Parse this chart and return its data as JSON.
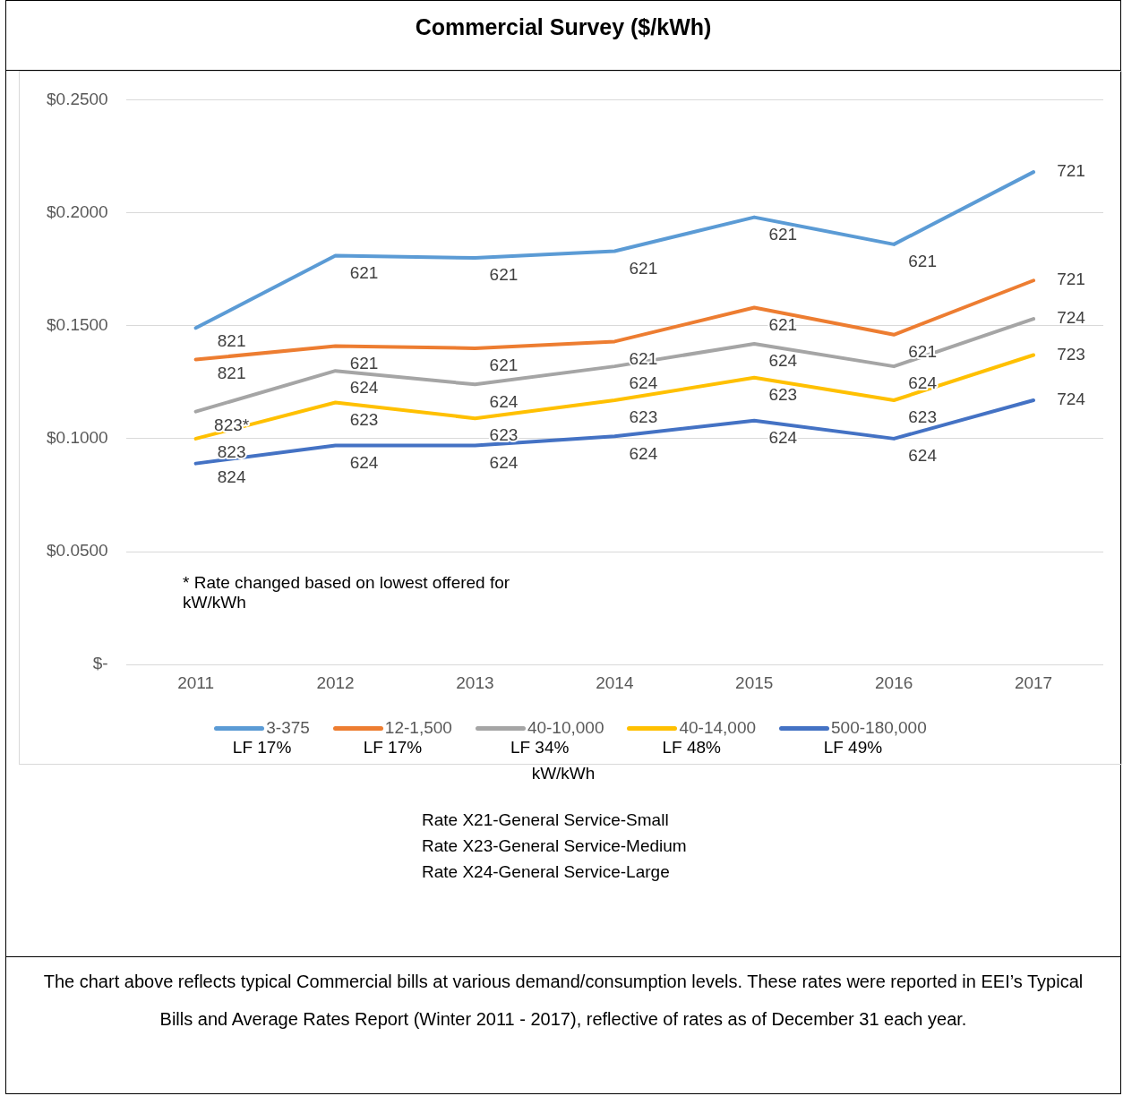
{
  "chart_data": {
    "type": "line",
    "title": "Commercial Survey ($/kWh)",
    "xlabel": "kW/kWh",
    "categories": [
      "2011",
      "2012",
      "2013",
      "2014",
      "2015",
      "2016",
      "2017"
    ],
    "series": [
      {
        "name": "3-375\nLF 17%",
        "color": "#5b9bd5",
        "values": [
          0.149,
          0.181,
          0.18,
          0.183,
          0.198,
          0.186,
          0.218
        ]
      },
      {
        "name": "12-1,500\nLF 17%",
        "color": "#ed7d31",
        "values": [
          0.135,
          0.141,
          0.14,
          0.143,
          0.158,
          0.146,
          0.17
        ]
      },
      {
        "name": "40-10,000\nLF 34%",
        "color": "#a5a5a5",
        "values": [
          0.112,
          0.13,
          0.124,
          0.132,
          0.142,
          0.132,
          0.153
        ]
      },
      {
        "name": "40-14,000\nLF 48%",
        "color": "#ffc000",
        "values": [
          0.1,
          0.116,
          0.109,
          0.117,
          0.127,
          0.117,
          0.137
        ]
      },
      {
        "name": "500-180,000\nLF 49%",
        "color": "#4472c4",
        "values": [
          0.089,
          0.097,
          0.097,
          0.101,
          0.108,
          0.1,
          0.117
        ]
      }
    ],
    "ylim": [
      0,
      0.25
    ],
    "yticks": [
      {
        "value": 0,
        "label": "$-"
      },
      {
        "value": 0.05,
        "label": "$0.0500"
      },
      {
        "value": 0.1,
        "label": "$0.1000"
      },
      {
        "value": 0.15,
        "label": "$0.1500"
      },
      {
        "value": 0.2,
        "label": "$0.2000"
      },
      {
        "value": 0.25,
        "label": "$0.2500"
      }
    ],
    "grid": "y",
    "legend": "bottom",
    "marker": "none",
    "line_style": "solid",
    "annotations": [
      "* Rate changed based on lowest offered for kW/kWh",
      "Rate X21-General Service-Small\nRate X23-General Service-Medium\nRate X24-General Service-Large",
      "The chart above reflects typical Commercial bills at various demand/consumption levels.  These rates were reported in EEI’s Typical Bills and Average Rates Report (Winter 2011 - 2017), reflective of rates as of December 31 each year.",
      {
        "text": "821",
        "x": "2011",
        "y": 0.149
      },
      {
        "text": "621",
        "x": "2012",
        "y": 0.181
      },
      {
        "text": "621",
        "x": "2013",
        "y": 0.18
      },
      {
        "text": "621",
        "x": "2014",
        "y": 0.183
      },
      {
        "text": "621",
        "x": "2015",
        "y": 0.198
      },
      {
        "text": "621",
        "x": "2016",
        "y": 0.186
      },
      {
        "text": "721",
        "x": "2017",
        "y": 0.218
      },
      {
        "text": "821",
        "x": "2011",
        "y": 0.135
      },
      {
        "text": "621",
        "x": "2012",
        "y": 0.141
      },
      {
        "text": "621",
        "x": "2013",
        "y": 0.14
      },
      {
        "text": "621",
        "x": "2014",
        "y": 0.143
      },
      {
        "text": "621",
        "x": "2015",
        "y": 0.158
      },
      {
        "text": "621",
        "x": "2016",
        "y": 0.146
      },
      {
        "text": "721",
        "x": "2017",
        "y": 0.17
      },
      {
        "text": "823*",
        "x": "2011",
        "y": 0.112
      },
      {
        "text": "624",
        "x": "2012",
        "y": 0.13
      },
      {
        "text": "624",
        "x": "2013",
        "y": 0.124
      },
      {
        "text": "624",
        "x": "2014",
        "y": 0.132
      },
      {
        "text": "624",
        "x": "2015",
        "y": 0.142
      },
      {
        "text": "624",
        "x": "2016",
        "y": 0.132
      },
      {
        "text": "724",
        "x": "2017",
        "y": 0.153
      },
      {
        "text": "823",
        "x": "2011",
        "y": 0.1
      },
      {
        "text": "623",
        "x": "2012",
        "y": 0.116
      },
      {
        "text": "623",
        "x": "2013",
        "y": 0.109
      },
      {
        "text": "623",
        "x": "2014",
        "y": 0.117
      },
      {
        "text": "623",
        "x": "2015",
        "y": 0.127
      },
      {
        "text": "623",
        "x": "2016",
        "y": 0.117
      },
      {
        "text": "723",
        "x": "2017",
        "y": 0.137
      },
      {
        "text": "824",
        "x": "2011",
        "y": 0.089
      },
      {
        "text": "624",
        "x": "2012",
        "y": 0.097
      },
      {
        "text": "624",
        "x": "2013",
        "y": 0.097
      },
      {
        "text": "624",
        "x": "2014",
        "y": 0.101
      },
      {
        "text": "624",
        "x": "2015",
        "y": 0.108
      },
      {
        "text": "624",
        "x": "2016",
        "y": 0.1
      },
      {
        "text": "724",
        "x": "2017",
        "y": 0.117
      }
    ]
  }
}
